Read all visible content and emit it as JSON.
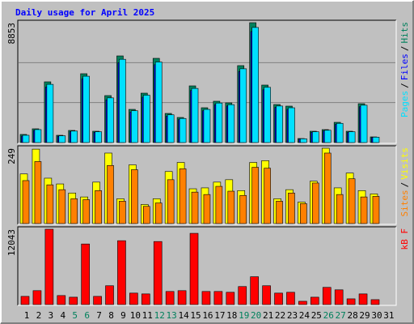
{
  "chart_data": {
    "type": "bar",
    "title": "Daily usage for April 2025",
    "categories": [
      1,
      2,
      3,
      4,
      5,
      6,
      7,
      8,
      9,
      10,
      11,
      12,
      13,
      14,
      15,
      16,
      17,
      18,
      19,
      20,
      21,
      22,
      23,
      24,
      25,
      26,
      27,
      28,
      29,
      30,
      31
    ],
    "category_colors": [
      "#000000",
      "#000000",
      "#000000",
      "#000000",
      "#00805c",
      "#00805c",
      "#000000",
      "#000000",
      "#000000",
      "#000000",
      "#000000",
      "#00805c",
      "#00805c",
      "#000000",
      "#000000",
      "#000000",
      "#000000",
      "#000000",
      "#00805c",
      "#00805c",
      "#000000",
      "#000000",
      "#000000",
      "#000000",
      "#000000",
      "#00805c",
      "#00805c",
      "#000000",
      "#000000",
      "#000000",
      "#000000"
    ],
    "legend_separator": "/",
    "panels": [
      {
        "ylim": [
          0,
          8853
        ],
        "yticks": [
          8853
        ],
        "grid_divisions": 3,
        "series": [
          {
            "name": "Hits",
            "color": "#00805c",
            "values": [
              600,
              1017,
              4486,
              538,
              897,
              5085,
              837,
              3469,
              6400,
              2452,
              3649,
              6221,
              2153,
              1854,
              4187,
              2572,
              3051,
              2931,
              5683,
              8853,
              4247,
              2811,
              2692,
              299,
              837,
              957,
              1495,
              837,
              2871,
              419,
              0
            ]
          },
          {
            "name": "Files",
            "color": "#0000ff",
            "values": [
              480,
              900,
              4100,
              470,
              800,
              4700,
              760,
              3150,
              5900,
              2250,
              3350,
              5750,
              1950,
              1700,
              3850,
              2350,
              2800,
              2700,
              5250,
              8200,
              3900,
              2600,
              2450,
              260,
              760,
              860,
              1350,
              760,
              2650,
              380,
              0
            ]
          },
          {
            "name": "Pages",
            "color": "#00e0ff",
            "values": [
              540,
              960,
              4300,
              500,
              850,
              4900,
              800,
              3300,
              6150,
              2350,
              3500,
              5950,
              2050,
              1780,
              4000,
              2450,
              2920,
              2800,
              5450,
              8500,
              4080,
              2700,
              2570,
              280,
              800,
              910,
              1420,
              800,
              2760,
              400,
              0
            ]
          }
        ],
        "legend_order": [
          2,
          1,
          0
        ]
      },
      {
        "ylim": [
          0,
          249
        ],
        "yticks": [
          249
        ],
        "series": [
          {
            "name": "Visits",
            "color": "#ffff00",
            "values": [
              164,
              246,
              150,
              131,
              101,
              88,
              137,
              233,
              82,
              194,
              63,
              82,
              172,
              202,
              115,
              118,
              137,
              145,
              109,
              202,
              208,
              82,
              112,
              71,
              140,
              249,
              118,
              167,
              109,
              98,
              0
            ]
          },
          {
            "name": "Sites",
            "color": "#ff8000",
            "values": [
              142,
              205,
              128,
              112,
              82,
              79,
              109,
              192,
              74,
              178,
              57,
              68,
              145,
              181,
              104,
              96,
              123,
              107,
              93,
              186,
              183,
              74,
              101,
              66,
              134,
              233,
              96,
              148,
              88,
              90,
              0
            ]
          }
        ],
        "legend_order": [
          1,
          0
        ]
      },
      {
        "ylim": [
          0,
          12043
        ],
        "yticks": [
          12043
        ],
        "series": [
          {
            "name": "kB F",
            "color": "#ff0000",
            "values": [
              1309,
              2225,
              12043,
              1440,
              1178,
              9686,
              1309,
              3011,
              10210,
              1833,
              1702,
              10079,
              2094,
              2225,
              11388,
              2094,
              2094,
              1964,
              2880,
              4451,
              3011,
              1833,
              1964,
              524,
              1178,
              2749,
              2356,
              916,
              1702,
              786,
              0
            ]
          }
        ],
        "legend_order": [
          0
        ]
      }
    ]
  }
}
